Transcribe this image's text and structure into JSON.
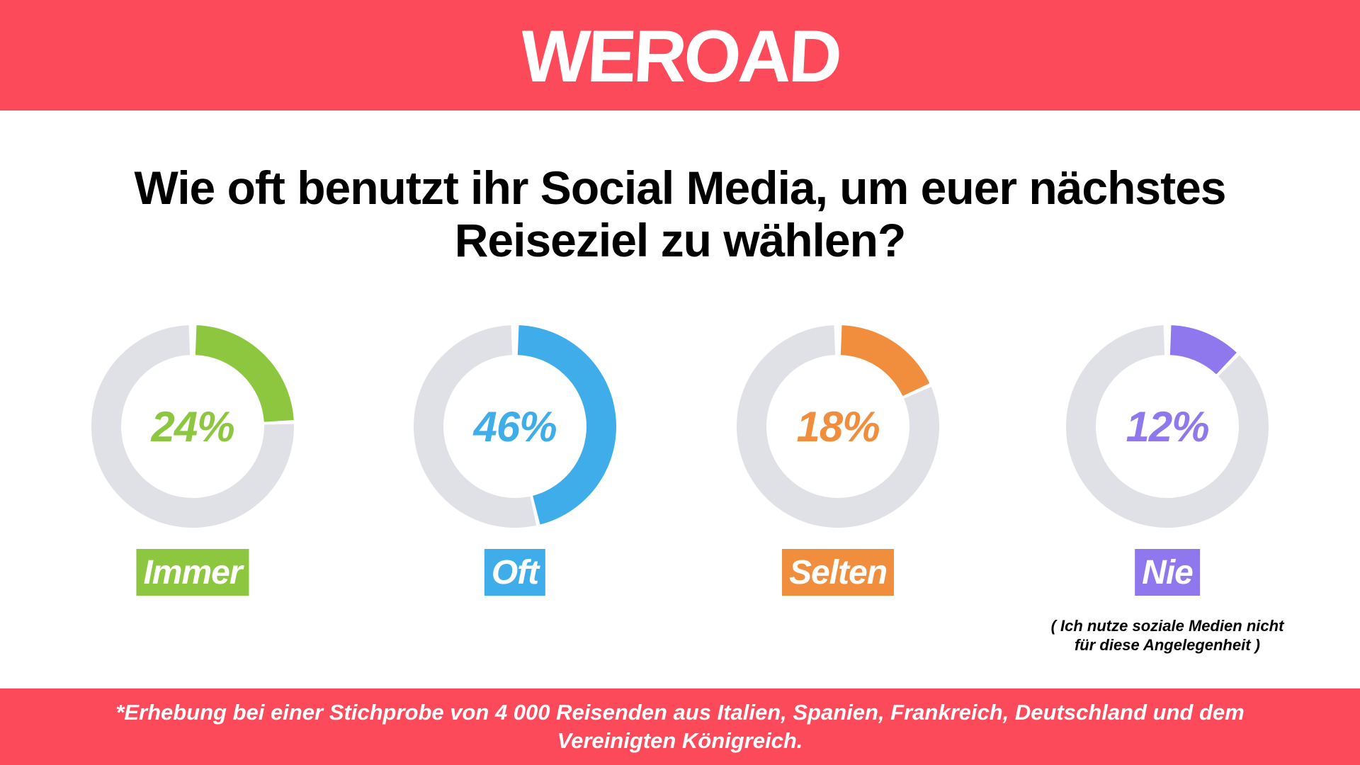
{
  "header": {
    "logo_text": "WEROAD",
    "background": "#fc4a5b"
  },
  "title": {
    "line1": "Wie oft benutzt ihr Social Media, um euer nächstes",
    "line2": "Reiseziel zu wählen?"
  },
  "chart_data": {
    "type": "pie",
    "variant": "donut-set",
    "title": "Wie oft benutzt ihr Social Media, um euer nächstes Reiseziel zu wählen?",
    "track_color": "#dfe1e6",
    "items": [
      {
        "label": "Immer",
        "value": 24,
        "display": "24%",
        "color": "#8dc63f"
      },
      {
        "label": "Oft",
        "value": 46,
        "display": "46%",
        "color": "#3eade9"
      },
      {
        "label": "Selten",
        "value": 18,
        "display": "18%",
        "color": "#f18e3d"
      },
      {
        "label": "Nie",
        "value": 12,
        "display": "12%",
        "color": "#8f78ee"
      }
    ],
    "annotation": {
      "line1": "( Ich nutze soziale Medien nicht",
      "line2": "für diese Angelegenheit )"
    }
  },
  "footer": {
    "line1": "*Erhebung bei einer Stichprobe von 4 000 Reisenden aus Italien, Spanien, Frankreich, Deutschland und dem",
    "line2": "Vereinigten Königreich.",
    "background": "#fc4a5b"
  }
}
